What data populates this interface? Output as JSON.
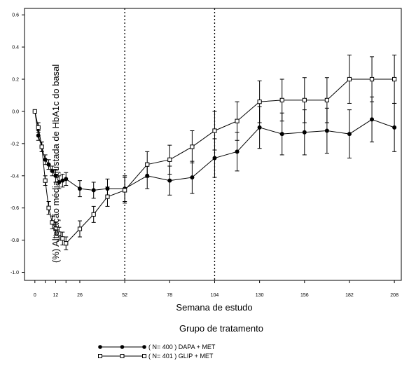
{
  "chart_data": {
    "type": "line",
    "xlabel": "Semana de estudo",
    "ylabel": "(%) Alteração média ajustada de HbA1c do basal",
    "legend_title": "Grupo de tratamento",
    "legend_position": "bottom-left",
    "xlim": [
      -6,
      212
    ],
    "ylim": [
      -1.05,
      0.64
    ],
    "x_ticks": [
      0,
      6,
      12,
      18,
      26,
      52,
      78,
      104,
      130,
      156,
      182,
      208
    ],
    "x_tick_labels": [
      "0",
      "",
      "12",
      "",
      "26",
      "52",
      "78",
      "104",
      "130",
      "156",
      "182",
      "208"
    ],
    "y_ticks": [
      0.6,
      0.4,
      0.2,
      0.0,
      -0.2,
      -0.4,
      -0.6,
      -0.8,
      -1.0
    ],
    "y_tick_labels": [
      "0.6",
      "0.4",
      "0.2",
      "0.0",
      "-0.2",
      "-0.4",
      "-0.6",
      "-0.8",
      "-1.0"
    ],
    "reference_lines_x": [
      52,
      104
    ],
    "grid": false,
    "series": [
      {
        "name": "( N= 400 ) DAPA + MET",
        "marker": "filled-circle",
        "color": "#000000",
        "x": [
          0,
          2,
          4,
          6,
          8,
          10,
          12,
          14,
          16,
          18,
          26,
          34,
          42,
          52,
          65,
          78,
          91,
          104,
          117,
          130,
          143,
          156,
          169,
          182,
          195,
          208
        ],
        "y": [
          0.0,
          -0.15,
          -0.22,
          -0.3,
          -0.33,
          -0.37,
          -0.4,
          -0.44,
          -0.43,
          -0.42,
          -0.48,
          -0.49,
          -0.48,
          -0.48,
          -0.4,
          -0.43,
          -0.41,
          -0.29,
          -0.25,
          -0.1,
          -0.14,
          -0.13,
          -0.12,
          -0.14,
          -0.05,
          -0.1
        ],
        "err": [
          0.0,
          0.03,
          0.03,
          0.03,
          0.03,
          0.03,
          0.04,
          0.04,
          0.04,
          0.04,
          0.05,
          0.05,
          0.06,
          0.08,
          0.08,
          0.09,
          0.1,
          0.12,
          0.12,
          0.13,
          0.13,
          0.14,
          0.14,
          0.15,
          0.14,
          0.15
        ]
      },
      {
        "name": "( N= 401 ) GLIP + MET",
        "marker": "open-square",
        "color": "#000000",
        "x": [
          0,
          2,
          4,
          6,
          8,
          10,
          12,
          14,
          16,
          18,
          26,
          34,
          42,
          52,
          65,
          78,
          91,
          104,
          117,
          130,
          143,
          156,
          169,
          182,
          195,
          208
        ],
        "y": [
          0.0,
          -0.1,
          -0.22,
          -0.43,
          -0.6,
          -0.69,
          -0.73,
          -0.76,
          -0.79,
          -0.82,
          -0.73,
          -0.64,
          -0.53,
          -0.49,
          -0.33,
          -0.3,
          -0.22,
          -0.12,
          -0.06,
          0.06,
          0.07,
          0.07,
          0.07,
          0.2,
          0.2,
          0.2
        ],
        "err": [
          0.0,
          0.03,
          0.03,
          0.03,
          0.04,
          0.04,
          0.04,
          0.04,
          0.04,
          0.04,
          0.05,
          0.05,
          0.06,
          0.08,
          0.08,
          0.09,
          0.1,
          0.12,
          0.12,
          0.13,
          0.13,
          0.14,
          0.14,
          0.15,
          0.14,
          0.15
        ]
      }
    ]
  }
}
